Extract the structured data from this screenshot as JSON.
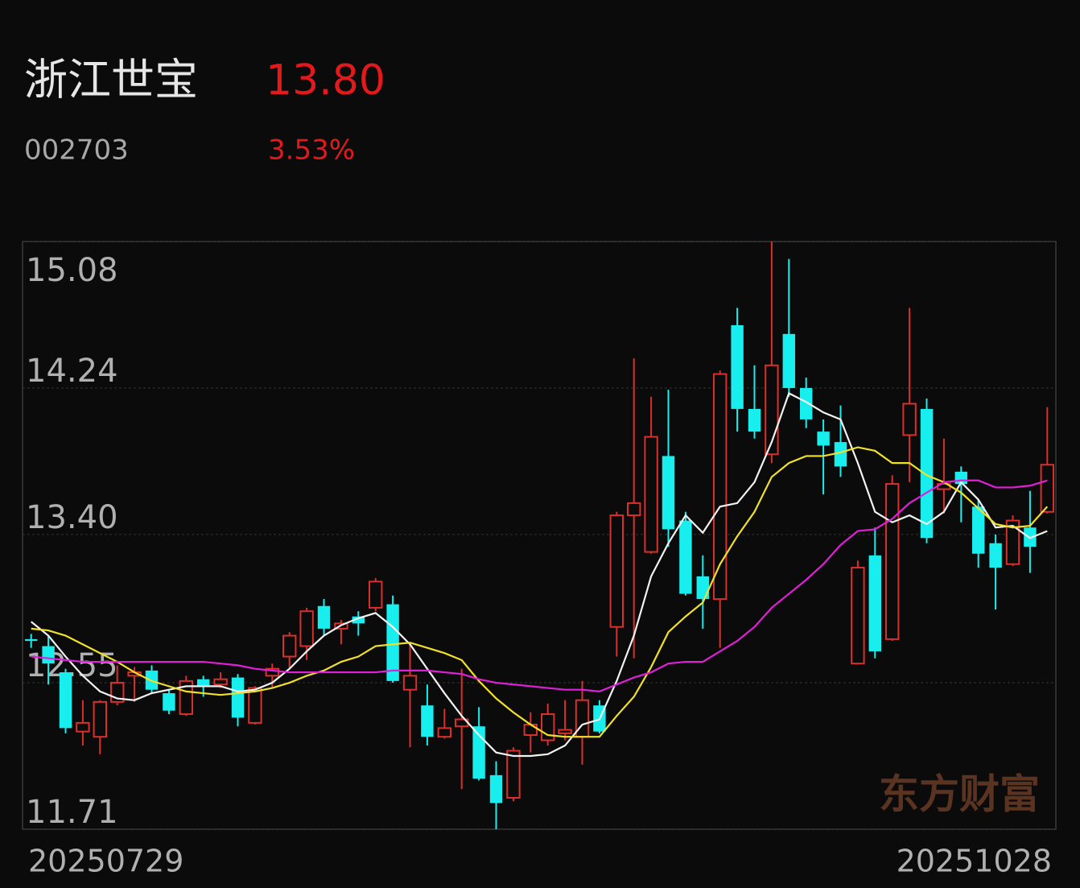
{
  "header": {
    "name": "浙江世宝",
    "price": "13.80",
    "code": "002703",
    "change": "3.53%"
  },
  "watermark": "东方财富",
  "chart_data": {
    "type": "candlestick",
    "categories": [
      "20250729",
      null,
      null,
      null,
      null,
      null,
      null,
      null,
      null,
      null,
      null,
      null,
      null,
      null,
      null,
      null,
      null,
      null,
      null,
      null,
      null,
      null,
      null,
      null,
      null,
      null,
      null,
      null,
      null,
      null,
      null,
      null,
      null,
      null,
      null,
      null,
      null,
      null,
      null,
      null,
      null,
      null,
      null,
      null,
      null,
      null,
      null,
      null,
      null,
      null,
      null,
      null,
      null,
      null,
      null,
      null,
      null,
      null,
      null,
      "20251028"
    ],
    "open": [
      12.8,
      12.76,
      12.61,
      12.27,
      12.24,
      12.44,
      12.59,
      12.62,
      12.49,
      12.37,
      12.57,
      12.54,
      12.58,
      12.32,
      12.59,
      12.7,
      12.76,
      12.99,
      12.86,
      12.93,
      12.98,
      13.0,
      12.51,
      12.42,
      12.24,
      12.3,
      12.3,
      12.02,
      11.89,
      12.25,
      12.22,
      12.26,
      12.24,
      12.42,
      12.87,
      13.51,
      13.3,
      13.85,
      13.48,
      13.16,
      13.03,
      14.6,
      14.12,
      13.86,
      14.55,
      14.24,
      13.99,
      13.93,
      12.66,
      13.28,
      12.8,
      13.97,
      14.12,
      13.66,
      13.76,
      13.56,
      13.35,
      13.23,
      13.44,
      13.53
    ],
    "high": [
      12.83,
      12.82,
      12.63,
      12.45,
      12.45,
      12.65,
      12.64,
      12.65,
      12.51,
      12.59,
      12.59,
      12.61,
      12.6,
      12.53,
      12.66,
      12.84,
      12.98,
      13.03,
      12.91,
      12.96,
      13.15,
      13.05,
      12.77,
      12.54,
      12.4,
      12.63,
      12.41,
      12.1,
      12.18,
      12.38,
      12.43,
      12.45,
      12.56,
      12.45,
      13.53,
      14.41,
      14.19,
      14.23,
      13.53,
      13.28,
      14.34,
      14.7,
      14.37,
      15.08,
      14.98,
      14.3,
      14.06,
      14.14,
      13.25,
      13.44,
      13.74,
      14.7,
      14.18,
      13.95,
      13.79,
      13.6,
      13.4,
      13.51,
      13.65,
      14.13
    ],
    "low": [
      12.75,
      12.54,
      12.26,
      12.19,
      12.14,
      12.42,
      12.44,
      12.49,
      12.37,
      12.36,
      12.47,
      12.52,
      12.3,
      12.31,
      12.52,
      12.63,
      12.68,
      12.82,
      12.77,
      12.82,
      12.96,
      12.55,
      12.18,
      12.19,
      12.23,
      11.94,
      11.99,
      11.71,
      11.87,
      12.15,
      12.19,
      12.22,
      12.08,
      12.26,
      12.7,
      12.69,
      13.29,
      13.33,
      13.05,
      12.86,
      12.75,
      13.99,
      13.95,
      13.81,
      14.19,
      14.01,
      13.63,
      13.73,
      12.66,
      12.69,
      12.79,
      13.7,
      13.35,
      13.52,
      13.47,
      13.21,
      12.97,
      13.22,
      13.18,
      13.52
    ],
    "close": [
      12.79,
      12.66,
      12.29,
      12.32,
      12.44,
      12.55,
      12.61,
      12.51,
      12.39,
      12.56,
      12.53,
      12.57,
      12.35,
      12.52,
      12.63,
      12.82,
      12.96,
      12.86,
      12.89,
      12.89,
      13.13,
      12.56,
      12.59,
      12.24,
      12.29,
      12.34,
      12.0,
      11.86,
      12.16,
      12.31,
      12.37,
      12.28,
      12.45,
      12.27,
      13.51,
      13.58,
      13.96,
      13.43,
      13.06,
      13.03,
      14.32,
      14.12,
      13.99,
      14.37,
      14.24,
      14.06,
      13.91,
      13.79,
      13.21,
      12.73,
      13.69,
      14.15,
      13.38,
      13.69,
      13.69,
      13.29,
      13.21,
      13.48,
      13.33,
      13.8
    ],
    "up_color": "#d9302c",
    "down_color": "#19eeee",
    "lines": [
      {
        "color": "#f2f2f2",
        "values": [
          12.9,
          12.82,
          12.7,
          12.59,
          12.5,
          12.46,
          12.45,
          12.49,
          12.51,
          12.53,
          12.53,
          12.53,
          12.5,
          12.51,
          12.55,
          12.63,
          12.73,
          12.82,
          12.88,
          12.92,
          12.95,
          12.87,
          12.77,
          12.63,
          12.49,
          12.36,
          12.25,
          12.15,
          12.13,
          12.13,
          12.14,
          12.19,
          12.31,
          12.34,
          12.56,
          12.82,
          13.16,
          13.35,
          13.51,
          13.41,
          13.56,
          13.58,
          13.7,
          13.93,
          14.21,
          14.16,
          14.1,
          14.06,
          13.81,
          13.53,
          13.47,
          13.51,
          13.46,
          13.53,
          13.7,
          13.6,
          13.44,
          13.45,
          13.38,
          13.42
        ]
      },
      {
        "color": "#f0e02a",
        "values": [
          12.86,
          12.85,
          12.82,
          12.77,
          12.72,
          12.67,
          12.61,
          12.56,
          12.53,
          12.5,
          12.49,
          12.48,
          12.49,
          12.5,
          12.52,
          12.55,
          12.59,
          12.62,
          12.67,
          12.7,
          12.76,
          12.77,
          12.78,
          12.75,
          12.72,
          12.68,
          12.56,
          12.46,
          12.38,
          12.31,
          12.25,
          12.24,
          12.24,
          12.24,
          12.36,
          12.47,
          12.64,
          12.84,
          12.93,
          13.01,
          13.23,
          13.39,
          13.53,
          13.73,
          13.81,
          13.85,
          13.85,
          13.87,
          13.9,
          13.88,
          13.81,
          13.81,
          13.74,
          13.7,
          13.64,
          13.55,
          13.46,
          13.44,
          13.45,
          13.56
        ]
      },
      {
        "color": "#e020d8",
        "values": [
          12.7,
          12.69,
          12.68,
          12.67,
          12.67,
          12.67,
          12.67,
          12.67,
          12.67,
          12.67,
          12.67,
          12.66,
          12.65,
          12.63,
          12.62,
          12.61,
          12.61,
          12.61,
          12.61,
          12.61,
          12.61,
          12.62,
          12.62,
          12.62,
          12.61,
          12.6,
          12.57,
          12.55,
          12.54,
          12.53,
          12.52,
          12.51,
          12.51,
          12.5,
          12.54,
          12.58,
          12.61,
          12.66,
          12.67,
          12.67,
          12.73,
          12.79,
          12.87,
          12.98,
          13.06,
          13.14,
          13.23,
          13.34,
          13.42,
          13.43,
          13.49,
          13.58,
          13.64,
          13.7,
          13.71,
          13.71,
          13.67,
          13.67,
          13.68,
          13.71
        ]
      }
    ],
    "ylim": [
      11.71,
      15.08
    ],
    "yticks": [
      15.08,
      14.24,
      {
        "value": 13.4,
        "label": "13.40"
      },
      12.55,
      11.71
    ],
    "grid": true
  }
}
